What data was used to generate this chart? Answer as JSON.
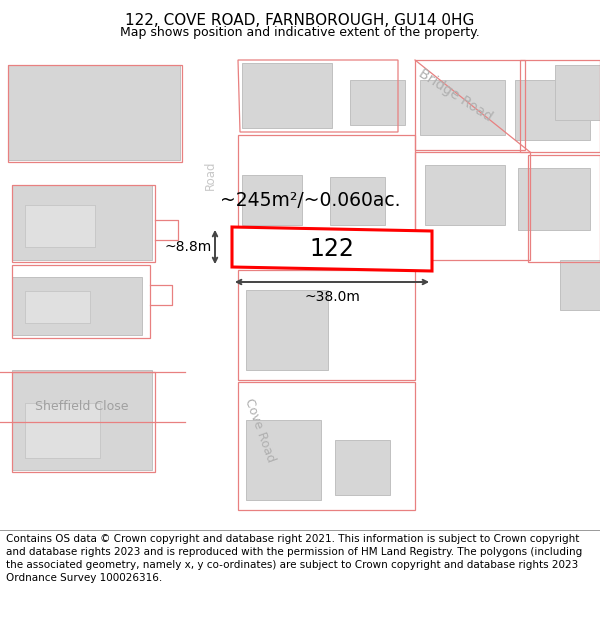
{
  "title": "122, COVE ROAD, FARNBOROUGH, GU14 0HG",
  "subtitle": "Map shows position and indicative extent of the property.",
  "footer": "Contains OS data © Crown copyright and database right 2021. This information is subject to Crown copyright and database rights 2023 and is reproduced with the permission of HM Land Registry. The polygons (including the associated geometry, namely x, y co-ordinates) are subject to Crown copyright and database rights 2023 Ordnance Survey 100026316.",
  "map_bg": "#f0f0f0",
  "road_color": "#ffffff",
  "building_fill": "#d6d6d6",
  "building_outline": "#c0c0c0",
  "boundary_color": "#e88080",
  "plot_color": "#ff0000",
  "property_label": "122",
  "area_label": "~245m²/~0.060ac.",
  "width_label": "~38.0m",
  "height_label": "~8.8m",
  "title_fontsize": 11,
  "subtitle_fontsize": 9,
  "footer_fontsize": 7.5,
  "label_color_road": "#b0b0b0",
  "label_color_street": "#a0a0a0"
}
